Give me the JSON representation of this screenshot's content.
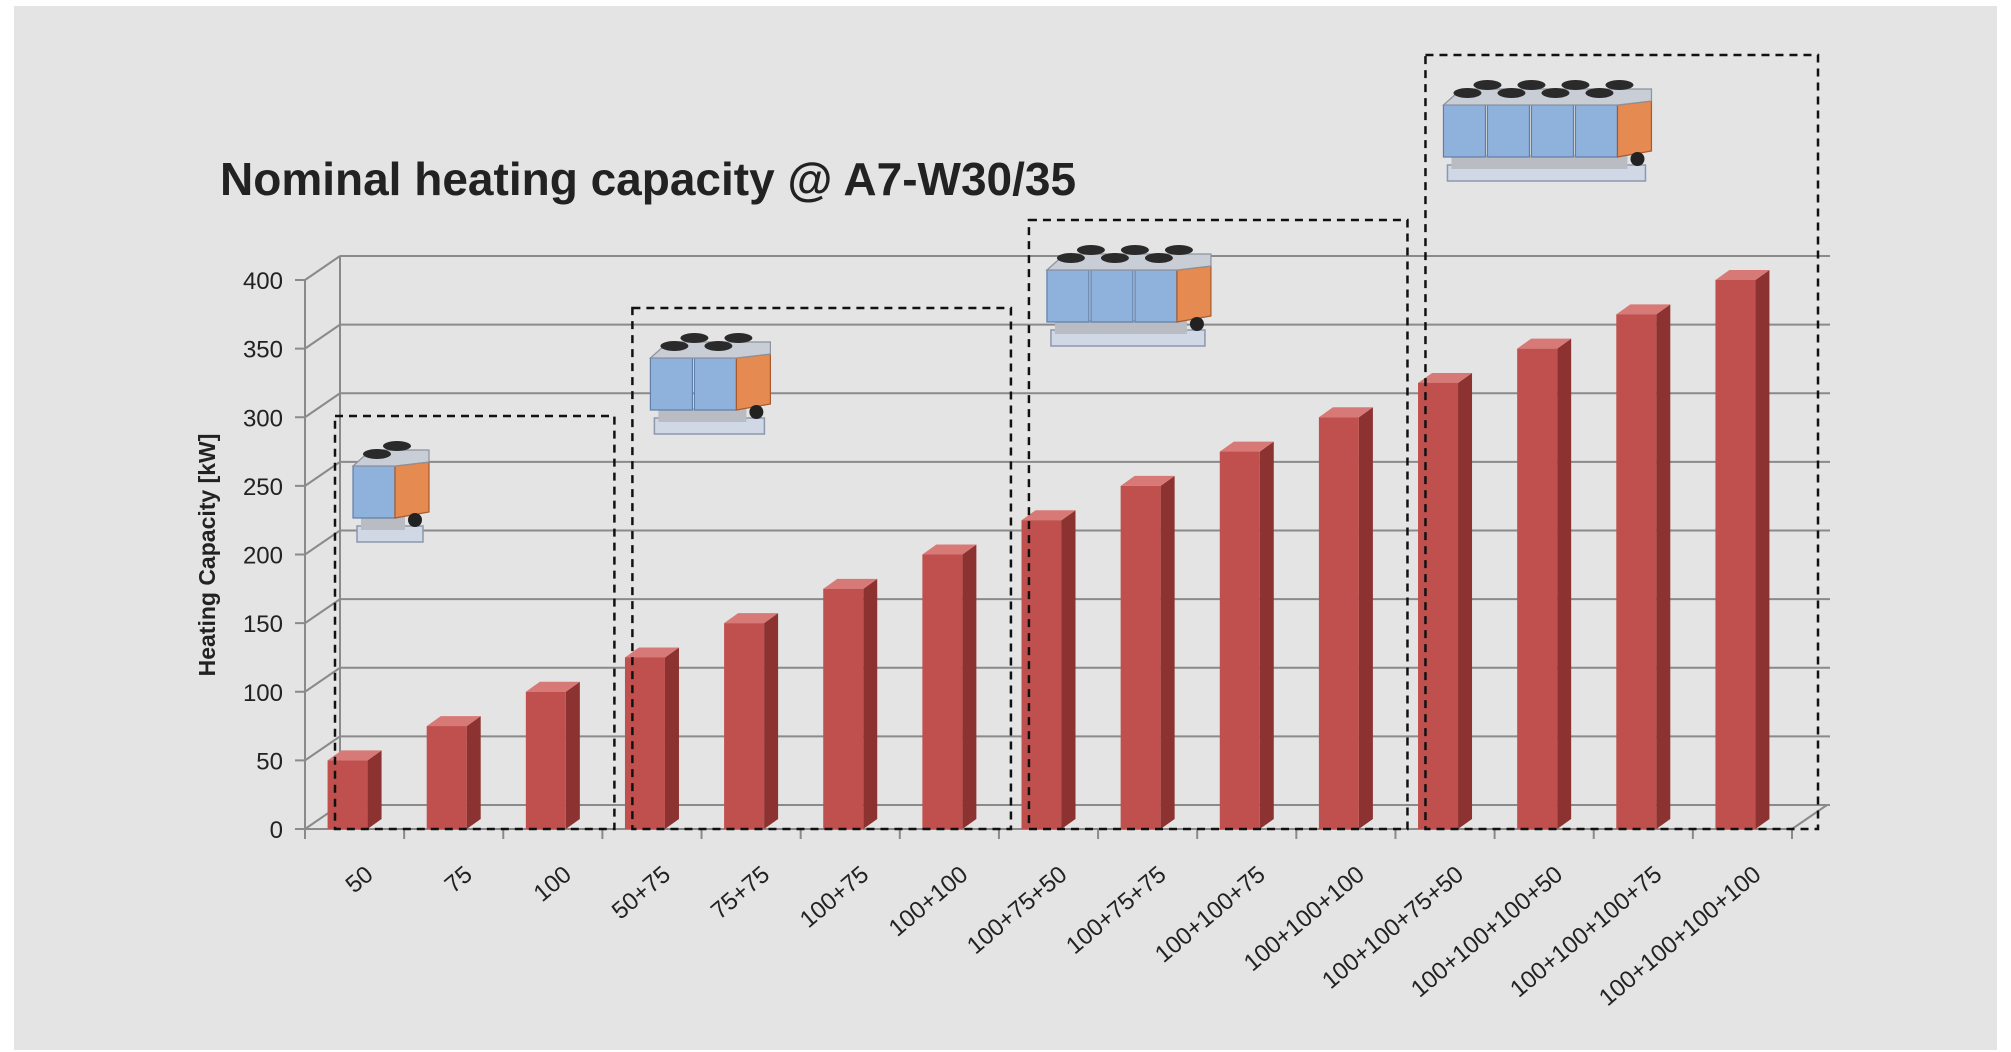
{
  "chart_data": {
    "type": "bar",
    "title": "Nominal heating capacity @ A7-W30/35",
    "ylabel": "Heating Capacity [kW]",
    "xlabel": "",
    "ylim": [
      0,
      400
    ],
    "yticks": [
      0,
      50,
      100,
      150,
      200,
      250,
      300,
      350,
      400
    ],
    "grid": true,
    "categories": [
      "50",
      "75",
      "100",
      "50+75",
      "75+75",
      "100+75",
      "100+100",
      "100+75+50",
      "100+75+75",
      "100+100+75",
      "100+100+100",
      "100+100+75+50",
      "100+100+100+50",
      "100+100+100+75",
      "100+100+100+100"
    ],
    "values": [
      50,
      75,
      100,
      125,
      150,
      175,
      200,
      225,
      250,
      275,
      300,
      325,
      350,
      375,
      400
    ],
    "groups": [
      {
        "units": 1,
        "from": 0,
        "to": 2
      },
      {
        "units": 2,
        "from": 3,
        "to": 6
      },
      {
        "units": 3,
        "from": 7,
        "to": 10
      },
      {
        "units": 4,
        "from": 11,
        "to": 14
      }
    ]
  },
  "colors": {
    "background": "#e4e4e4",
    "bar_front": "#c0504d",
    "bar_side": "#8c3331",
    "bar_top": "#d77a77",
    "grid": "#8a8a8a",
    "text": "#222222"
  },
  "icons": {
    "group_image": "air-cooled-heat-pump-unit-icon"
  }
}
